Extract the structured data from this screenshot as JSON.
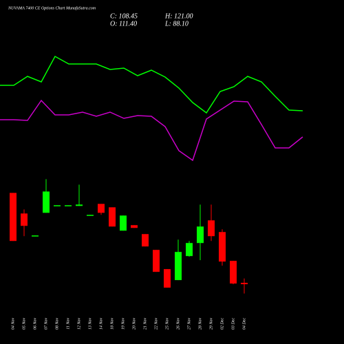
{
  "chart_data": [
    {
      "type": "line",
      "ylim": [
        50,
        240
      ],
      "series": [
        {
          "color": "#00ff00",
          "values": [
            176,
            176,
            189,
            181,
            218,
            207,
            207,
            207,
            199,
            201,
            190,
            198,
            188,
            172,
            151,
            136,
            167,
            174,
            189,
            181,
            160,
            140,
            139
          ]
        },
        {
          "color": "#cc00cc",
          "values": [
            126,
            126,
            125,
            154,
            133,
            133,
            137,
            131,
            137,
            128,
            132,
            131,
            116,
            81,
            67,
            127,
            140,
            153,
            152,
            119,
            85,
            85,
            101
          ]
        }
      ]
    },
    {
      "type": "candlestick",
      "title": "NUVAMA 7400 CE Options Chart MunafaSutra.com",
      "annotations": [
        "C: 108.45",
        "H: 121.00",
        "O: 111.40",
        "L: 88.10"
      ],
      "up_color": "#00ff00",
      "down_color": "#ff0000",
      "ylim": [
        80,
        340
      ],
      "categories": [
        "04 Nov",
        "05 Nov",
        "06 Nov",
        "07 Nov",
        "08 Nov",
        "11 Nov",
        "12 Nov",
        "13 Nov",
        "14 Nov",
        "18 Nov",
        "19 Nov",
        "20 Nov",
        "21 Nov",
        "22 Nov",
        "25 Nov",
        "26 Nov",
        "27 Nov",
        "28 Nov",
        "29 Nov",
        "02 Dec",
        "03 Dec",
        "04 Dec"
      ],
      "open": [
        307.9,
        262.9,
        213.4,
        264.4,
        279.4,
        279.4,
        279.4,
        258.4,
        283.9,
        276.4,
        225.4,
        237.4,
        217.9,
        183.4,
        141.4,
        117.4,
        169.9,
        198.4,
        247.9,
        222.4,
        159.4,
        111.4
      ],
      "high": [
        307.9,
        271.9,
        214.9,
        337.9,
        280.9,
        280.9,
        325.9,
        259.9,
        283.9,
        276.4,
        258.4,
        237.4,
        217.9,
        183.4,
        141.4,
        205.9,
        202.9,
        282.4,
        282.4,
        228.4,
        159.4,
        121.0
      ],
      "low": [
        202.9,
        213.4,
        213.4,
        264.4,
        279.4,
        279.4,
        279.4,
        258.4,
        259.9,
        234.4,
        225.4,
        231.4,
        190.9,
        135.4,
        100.9,
        117.4,
        168.4,
        160.9,
        202.9,
        148.9,
        108.4,
        88.1
      ],
      "close": [
        202.9,
        235.9,
        214.9,
        310.9,
        280.9,
        280.9,
        282.4,
        259.9,
        264.4,
        234.4,
        258.4,
        231.4,
        190.9,
        135.4,
        100.9,
        178.9,
        198.4,
        234.4,
        213.4,
        157.9,
        109.9,
        108.45
      ]
    }
  ]
}
